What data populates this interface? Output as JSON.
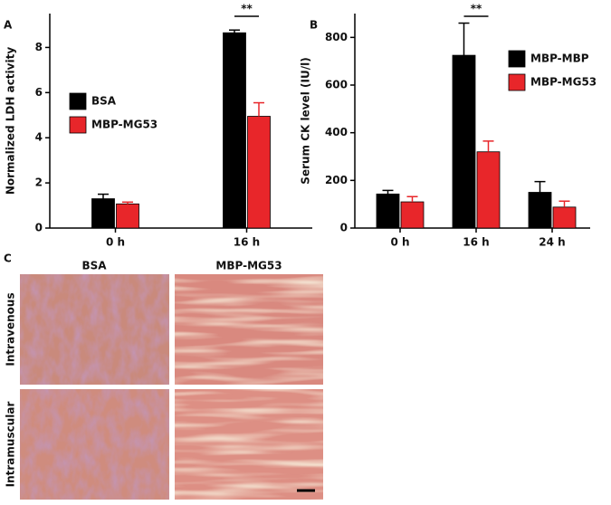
{
  "chart_data": [
    {
      "type": "bar",
      "panel": "A",
      "y_label": "Normalized LDH activity",
      "categories": [
        "0 h",
        "16 h"
      ],
      "series": [
        {
          "name": "BSA",
          "color": "#000000",
          "values": [
            1.3,
            8.65
          ],
          "errors": [
            0.2,
            0.12
          ]
        },
        {
          "name": "MBP-MG53",
          "color": "#e8262a",
          "values": [
            1.07,
            4.95
          ],
          "errors": [
            0.08,
            0.6
          ]
        }
      ],
      "ylim": [
        0,
        9.5
      ],
      "yticks": [
        0,
        2,
        4,
        6,
        8
      ],
      "legend": "center left",
      "significance": {
        "label": "**",
        "category": "16 h"
      }
    },
    {
      "type": "bar",
      "panel": "B",
      "y_label": "Serum CK level (IU/l)",
      "categories": [
        "0 h",
        "16 h",
        "24 h"
      ],
      "series": [
        {
          "name": "MBP-MBP",
          "color": "#000000",
          "values": [
            143,
            725,
            150
          ],
          "errors": [
            15,
            135,
            45
          ]
        },
        {
          "name": "MBP-MG53",
          "color": "#e8262a",
          "values": [
            110,
            320,
            88
          ],
          "errors": [
            22,
            45,
            25
          ]
        }
      ],
      "ylim": [
        0,
        900
      ],
      "yticks": [
        0,
        200,
        400,
        600,
        800
      ],
      "legend": "upper right",
      "significance": {
        "label": "**",
        "category": "16 h"
      }
    }
  ],
  "panel_c": {
    "label": "C",
    "columns": [
      "BSA",
      "MBP-MG53"
    ],
    "rows": [
      "Intravenous",
      "Intramuscular"
    ]
  }
}
